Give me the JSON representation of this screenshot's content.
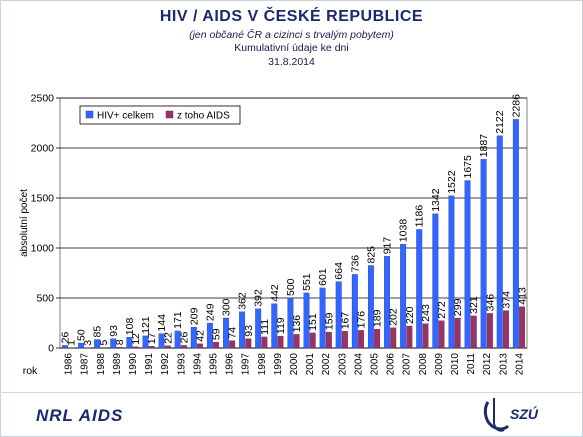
{
  "header": {
    "title": "HIV / AIDS V ČESKÉ REPUBLICE",
    "subtitle": "(jen občané ČR a cizinci s trvalým pobytem)",
    "note": "Kumulativní údaje ke dni",
    "date": "31.8.2014"
  },
  "footer": {
    "left_text": "NRL AIDS",
    "logo_text": "SZÚ",
    "logo_icon": "szu-logo-icon"
  },
  "chart_data": {
    "type": "bar",
    "title": "",
    "xlabel": "rok",
    "ylabel": "absolutní počet",
    "ylim": [
      0,
      2500
    ],
    "yticks": [
      0,
      500,
      1000,
      1500,
      2000,
      2500
    ],
    "grid": true,
    "legend_position": "top-left",
    "categories": [
      "1986",
      "1987",
      "1988",
      "1989",
      "1990",
      "1991",
      "1992",
      "1993",
      "1994",
      "1995",
      "1996",
      "1997",
      "1998",
      "1999",
      "2000",
      "2001",
      "2002",
      "2003",
      "2004",
      "2005",
      "2006",
      "2007",
      "2008",
      "2009",
      "2010",
      "2011",
      "2012",
      "2013",
      "2014"
    ],
    "series": [
      {
        "name": "HIV+ celkem",
        "color": "#3366ff",
        "values": [
          26,
          50,
          85,
          93,
          108,
          121,
          144,
          171,
          209,
          249,
          300,
          362,
          392,
          442,
          500,
          551,
          601,
          664,
          736,
          825,
          917,
          1038,
          1186,
          1342,
          1522,
          1675,
          1887,
          2122,
          2286
        ]
      },
      {
        "name": "z toho AIDS",
        "color": "#993366",
        "values": [
          1,
          3,
          5,
          8,
          12,
          17,
          22,
          26,
          42,
          59,
          74,
          93,
          111,
          119,
          136,
          151,
          159,
          167,
          176,
          189,
          202,
          220,
          243,
          272,
          299,
          321,
          346,
          374,
          413
        ]
      }
    ]
  }
}
